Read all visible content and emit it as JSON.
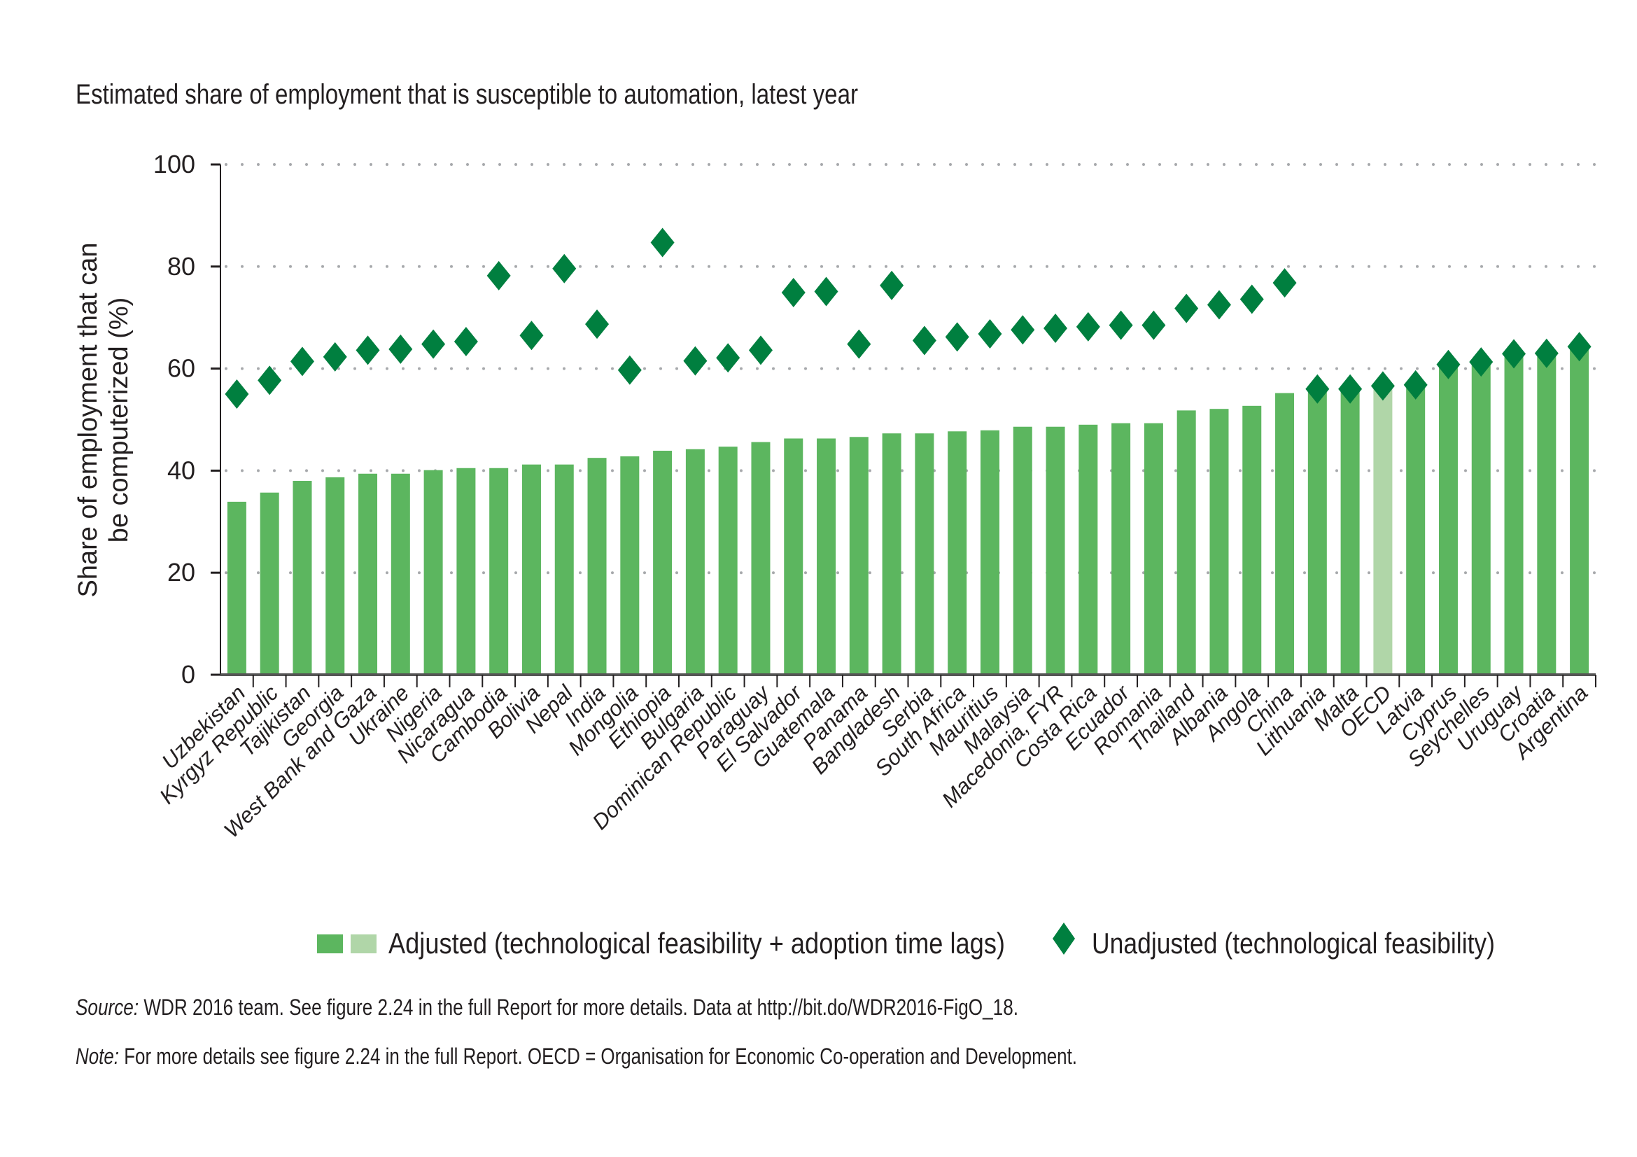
{
  "chart_data": {
    "type": "bar",
    "title": "Estimated share of employment that is susceptible to automation, latest year",
    "ylabel_lines": [
      "Share of employment that can",
      "be computerized (%)"
    ],
    "xlabel": "",
    "ylim": [
      0,
      100
    ],
    "yticks": [
      0,
      20,
      40,
      60,
      80,
      100
    ],
    "grid": "horizontal dotted",
    "legend_position": "bottom",
    "categories": [
      "Uzbekistan",
      "Kyrgyz Republic",
      "Tajikistan",
      "Georgia",
      "West Bank and Gaza",
      "Ukraine",
      "Nigeria",
      "Nicaragua",
      "Cambodia",
      "Bolivia",
      "Nepal",
      "India",
      "Mongolia",
      "Ethiopia",
      "Bulgaria",
      "Dominican Republic",
      "Paraguay",
      "El Salvador",
      "Guatemala",
      "Panama",
      "Bangladesh",
      "Serbia",
      "South Africa",
      "Mauritius",
      "Malaysia",
      "Macedonia, FYR",
      "Costa Rica",
      "Ecuador",
      "Romania",
      "Thailand",
      "Albania",
      "Angola",
      "China",
      "Lithuania",
      "Malta",
      "OECD",
      "Latvia",
      "Cyprus",
      "Seychelles",
      "Uruguay",
      "Croatia",
      "Argentina"
    ],
    "highlight_category": "OECD",
    "series": [
      {
        "name": "Adjusted (technological feasibility + adoption time lags)",
        "kind": "bar",
        "values": [
          33.9,
          35.7,
          38.0,
          38.7,
          39.4,
          39.4,
          40.1,
          40.5,
          40.5,
          41.2,
          41.2,
          42.5,
          42.8,
          43.9,
          44.2,
          44.7,
          45.6,
          46.3,
          46.3,
          46.6,
          47.3,
          47.3,
          47.7,
          47.9,
          48.6,
          48.6,
          49.0,
          49.3,
          49.3,
          51.8,
          52.1,
          52.7,
          55.2,
          56.0,
          56.0,
          56.5,
          56.5,
          60.3,
          61.0,
          62.5,
          62.8,
          64.0
        ]
      },
      {
        "name": "Unadjusted (technological feasibility)",
        "kind": "diamond",
        "values": [
          55.0,
          57.7,
          61.4,
          62.3,
          63.6,
          63.8,
          64.8,
          65.3,
          78.2,
          66.5,
          79.6,
          68.7,
          59.7,
          84.7,
          61.5,
          62.1,
          63.6,
          74.9,
          75.1,
          64.8,
          76.3,
          65.5,
          66.2,
          66.8,
          67.6,
          67.9,
          68.2,
          68.5,
          68.5,
          71.8,
          72.5,
          73.6,
          76.8,
          56.0,
          56.0,
          56.6,
          56.8,
          60.8,
          61.3,
          62.9,
          63.0,
          64.3
        ]
      }
    ],
    "colors": {
      "bar": "#5cb65f",
      "bar_highlight": "#b0d6a8",
      "diamond": "#007f3f",
      "grid": "#a7a9ac",
      "axis": "#231f20"
    }
  },
  "footnotes": {
    "source_label": "Source:",
    "source_text": " WDR 2016 team. See figure 2.24 in the full Report for more details. Data at http://bit.do/WDR2016-FigO_18.",
    "note_label": "Note:",
    "note_text": " For more details see figure 2.24 in the full Report. OECD = Organisation for Economic Co-operation and Development."
  }
}
